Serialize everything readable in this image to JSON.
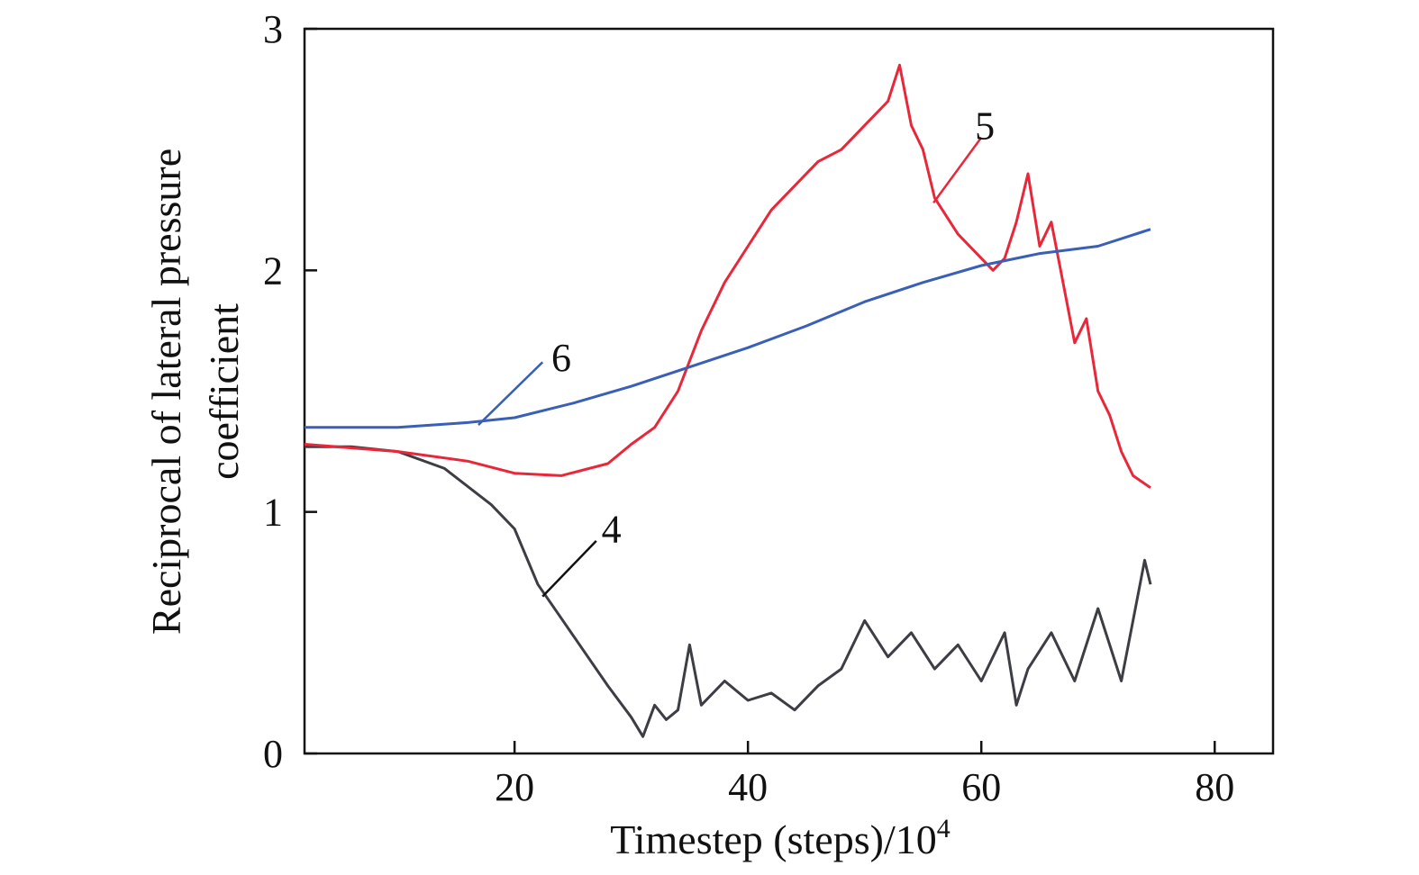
{
  "chart_data": {
    "type": "line",
    "title": "",
    "xlabel": "Timestep (steps)/10",
    "xlabel_superscript": "4",
    "ylabel_lines": [
      "Reciprocal of lateral pressure",
      "coefficient"
    ],
    "xlim": [
      2,
      85
    ],
    "ylim": [
      0,
      3
    ],
    "xticks": [
      20,
      40,
      60,
      80
    ],
    "yticks": [
      0,
      1,
      2,
      3
    ],
    "xtick_labels": [
      "20",
      "40",
      "60",
      "80"
    ],
    "ytick_labels": [
      "0",
      "1",
      "2",
      "3"
    ],
    "grid": false,
    "series": [
      {
        "name": "4",
        "color": "#3c3e44",
        "x": [
          2,
          6,
          10,
          14,
          18,
          20,
          22,
          24,
          26,
          28,
          30,
          31,
          32,
          33,
          34,
          35,
          36,
          38,
          40,
          42,
          44,
          46,
          48,
          50,
          52,
          54,
          56,
          58,
          60,
          62,
          63,
          64,
          66,
          68,
          70,
          72,
          73,
          74,
          74.5
        ],
        "y": [
          1.27,
          1.27,
          1.25,
          1.18,
          1.03,
          0.93,
          0.7,
          0.56,
          0.42,
          0.28,
          0.15,
          0.07,
          0.2,
          0.14,
          0.18,
          0.45,
          0.2,
          0.3,
          0.22,
          0.25,
          0.18,
          0.28,
          0.35,
          0.55,
          0.4,
          0.5,
          0.35,
          0.45,
          0.3,
          0.5,
          0.2,
          0.35,
          0.5,
          0.3,
          0.6,
          0.3,
          0.55,
          0.8,
          0.7
        ]
      },
      {
        "name": "5",
        "color": "#e8283a",
        "x": [
          2,
          10,
          16,
          20,
          24,
          28,
          30,
          32,
          34,
          36,
          38,
          40,
          42,
          44,
          46,
          48,
          50,
          52,
          53,
          54,
          55,
          56,
          58,
          60,
          61,
          62,
          63,
          64,
          65,
          66,
          67,
          68,
          69,
          70,
          71,
          72,
          73,
          74.5
        ],
        "y": [
          1.28,
          1.25,
          1.21,
          1.16,
          1.15,
          1.2,
          1.28,
          1.35,
          1.5,
          1.75,
          1.95,
          2.1,
          2.25,
          2.35,
          2.45,
          2.5,
          2.6,
          2.7,
          2.85,
          2.6,
          2.5,
          2.3,
          2.15,
          2.05,
          2.0,
          2.05,
          2.2,
          2.4,
          2.1,
          2.2,
          1.95,
          1.7,
          1.8,
          1.5,
          1.4,
          1.25,
          1.15,
          1.1
        ]
      },
      {
        "name": "6",
        "color": "#3a5fb8",
        "x": [
          2,
          10,
          16,
          20,
          25,
          30,
          35,
          40,
          45,
          50,
          55,
          60,
          65,
          70,
          74.5
        ],
        "y": [
          1.35,
          1.35,
          1.37,
          1.39,
          1.45,
          1.52,
          1.6,
          1.68,
          1.77,
          1.87,
          1.95,
          2.02,
          2.07,
          2.1,
          2.17
        ]
      }
    ],
    "annotations": [
      {
        "text": "4",
        "x": 28.3,
        "y": 0.93,
        "line": [
          [
            22.4,
            0.65
          ],
          [
            27,
            0.88
          ]
        ],
        "color": "#111111"
      },
      {
        "text": "5",
        "x": 60.3,
        "y": 2.6,
        "line": [
          [
            55.9,
            2.28
          ],
          [
            60,
            2.55
          ]
        ],
        "color": "#e8283a"
      },
      {
        "text": "6",
        "x": 24,
        "y": 1.64,
        "line": [
          [
            16.9,
            1.36
          ],
          [
            22.4,
            1.62
          ]
        ],
        "color": "#3a5fb8"
      }
    ]
  }
}
